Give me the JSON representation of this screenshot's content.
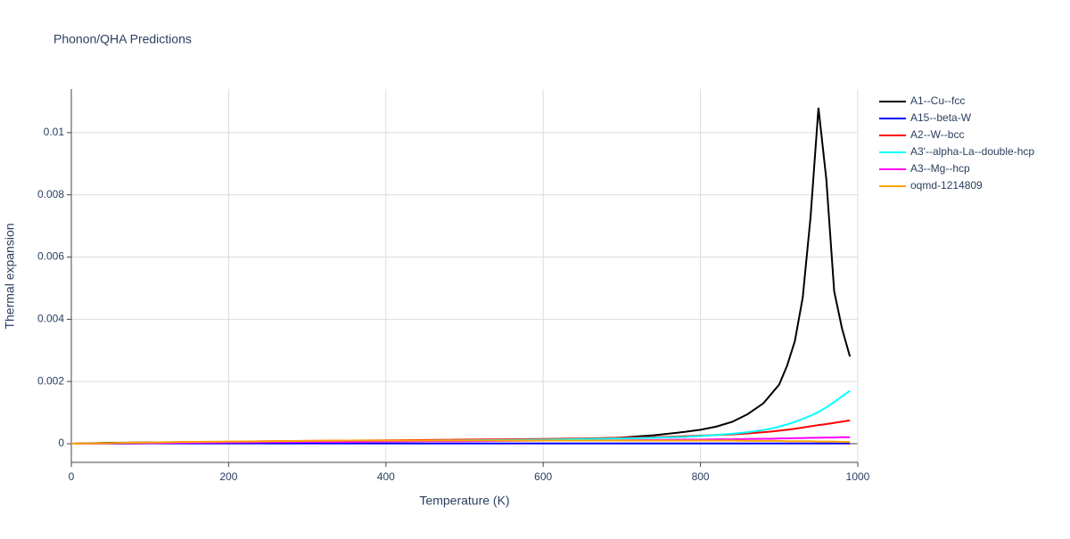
{
  "chart_data": {
    "type": "line",
    "title": "Phonon/QHA Predictions",
    "x_label": "Temperature (K)",
    "y_label": "Thermal expansion",
    "xlim": [
      0,
      1000
    ],
    "ylim": [
      -0.0006,
      0.0114
    ],
    "xticks": [
      0,
      200,
      400,
      600,
      800,
      1000
    ],
    "yticks": [
      0,
      0.002,
      0.004,
      0.006,
      0.008,
      0.01
    ],
    "grid": true,
    "legend": "right",
    "x": [
      0,
      50,
      100,
      150,
      200,
      250,
      300,
      350,
      400,
      450,
      500,
      550,
      600,
      650,
      700,
      740,
      780,
      800,
      820,
      840,
      860,
      880,
      890,
      900,
      910,
      920,
      930,
      940,
      950,
      960,
      970,
      980,
      990
    ],
    "series": [
      {
        "name": "A1--Cu--fcc",
        "color": "#000000",
        "values": [
          0,
          3e-05,
          4e-05,
          5e-05,
          5e-05,
          6e-05,
          6e-05,
          7e-05,
          8e-05,
          9e-05,
          0.0001,
          0.00011,
          0.00012,
          0.00015,
          0.0002,
          0.00027,
          0.00038,
          0.00045,
          0.00055,
          0.0007,
          0.00095,
          0.0013,
          0.0016,
          0.0019,
          0.0025,
          0.0033,
          0.0047,
          0.0073,
          0.0108,
          0.0085,
          0.0049,
          0.0037,
          0.0028
        ]
      },
      {
        "name": "A15--beta-W",
        "color": "#0000ff",
        "values": [
          0,
          0,
          1e-05,
          1e-05,
          1e-05,
          1e-05,
          1e-05,
          1e-05,
          1e-05,
          1e-05,
          1e-05,
          1e-05,
          1e-05,
          1e-05,
          1e-05,
          1e-05,
          1e-05,
          1e-05,
          1e-05,
          1e-05,
          1e-05,
          1e-05,
          1e-05,
          1e-05,
          1e-05,
          1e-05,
          1e-05,
          1e-05,
          1e-05,
          1e-05,
          1e-05,
          1e-05,
          1e-05
        ]
      },
      {
        "name": "A2--W--bcc",
        "color": "#ff0000",
        "values": [
          0,
          1e-05,
          3e-05,
          5e-05,
          6e-05,
          8e-05,
          9e-05,
          0.0001,
          0.00011,
          0.00012,
          0.00013,
          0.00014,
          0.00015,
          0.00017,
          0.00019,
          0.00021,
          0.00024,
          0.00026,
          0.00028,
          0.0003,
          0.00033,
          0.00037,
          0.00039,
          0.00042,
          0.00045,
          0.00048,
          0.00052,
          0.00056,
          0.0006,
          0.00063,
          0.00067,
          0.00071,
          0.00075
        ]
      },
      {
        "name": "A3'--alpha-La--double-hcp",
        "color": "#00ffff",
        "values": [
          0,
          1e-05,
          2e-05,
          4e-05,
          5e-05,
          6e-05,
          7e-05,
          8e-05,
          9e-05,
          0.0001,
          0.00011,
          0.00012,
          0.00013,
          0.00015,
          0.00017,
          0.00019,
          0.00022,
          0.00025,
          0.00028,
          0.00032,
          0.00037,
          0.00044,
          0.00049,
          0.00055,
          0.00062,
          0.0007,
          0.0008,
          0.0009,
          0.00102,
          0.00117,
          0.00134,
          0.00152,
          0.0017
        ]
      },
      {
        "name": "A3--Mg--hcp",
        "color": "#ff00ff",
        "values": [
          0,
          1e-05,
          2e-05,
          3e-05,
          4e-05,
          5e-05,
          6e-05,
          6e-05,
          7e-05,
          8e-05,
          8e-05,
          9e-05,
          0.0001,
          0.0001,
          0.00011,
          0.00012,
          0.00013,
          0.00013,
          0.00014,
          0.00014,
          0.00015,
          0.00016,
          0.00016,
          0.00017,
          0.00017,
          0.00018,
          0.00018,
          0.00019,
          0.00019,
          0.0002,
          0.0002,
          0.00021,
          0.00021
        ]
      },
      {
        "name": "oqmd-1214809",
        "color": "#ffa500",
        "values": [
          0,
          2e-05,
          4e-05,
          6e-05,
          7e-05,
          8e-05,
          9e-05,
          0.0001,
          0.0001,
          0.0001,
          0.0001,
          0.0001,
          0.0001,
          0.0001,
          0.0001,
          0.0001,
          0.0001,
          0.0001,
          0.0001,
          0.0001,
          9e-05,
          9e-05,
          9e-05,
          9e-05,
          8e-05,
          8e-05,
          8e-05,
          8e-05,
          7e-05,
          7e-05,
          7e-05,
          6e-05,
          6e-05
        ]
      }
    ]
  }
}
